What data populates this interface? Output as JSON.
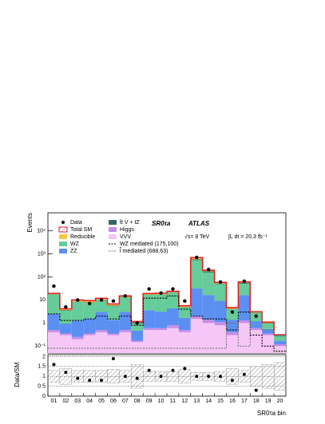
{
  "chart_data": {
    "type": "stacked-histogram",
    "ylabel": "Events",
    "xlabel": "SR0τa bin",
    "region_label": "SR0τa",
    "experiment": "ATLAS",
    "energy": "√s= 8 TeV",
    "luminosity": "∫L dt = 20.3 fb⁻¹",
    "log_scale": true,
    "categories": [
      "01",
      "02",
      "03",
      "04",
      "05",
      "06",
      "07",
      "08",
      "09",
      "10",
      "11",
      "12",
      "13",
      "14",
      "15",
      "16",
      "17",
      "18",
      "19",
      "20"
    ],
    "ylim": [
      0.05,
      60000
    ],
    "yticks": [
      {
        "value": 0.1,
        "label": "10⁻¹"
      },
      1,
      10,
      {
        "value": 100,
        "label": "10²"
      },
      {
        "value": 1000,
        "label": "10³"
      },
      {
        "value": 10000,
        "label": "10⁴"
      }
    ],
    "series": [
      {
        "name": "VVV",
        "color": "#f6c6f6",
        "values": [
          0.4,
          0.3,
          0.2,
          0.3,
          0.4,
          0.3,
          0.4,
          0.15,
          0.5,
          0.5,
          0.6,
          0.4,
          1.5,
          1,
          0.8,
          0.3,
          1,
          0.5,
          0.3,
          0.1
        ]
      },
      {
        "name": "Higgs",
        "color": "#c58de8",
        "values": [
          0.1,
          0.05,
          0.05,
          0.05,
          0.1,
          0.05,
          0.1,
          0.02,
          0.1,
          0.1,
          0.2,
          0.1,
          0.5,
          0.4,
          0.3,
          0.1,
          0.3,
          0.1,
          0.05,
          0.02
        ]
      },
      {
        "name": "ZZ",
        "color": "#5b8ff2",
        "values": [
          2,
          0.6,
          1,
          1.2,
          2.5,
          1,
          2.5,
          0.3,
          3,
          2.5,
          3.5,
          1.2,
          30,
          15,
          8,
          1,
          15,
          0.6,
          0.2,
          0.05
        ]
      },
      {
        "name": "WZ",
        "color": "#66cc99",
        "values": [
          15,
          2.5,
          7,
          6,
          7,
          4,
          10,
          0.5,
          13,
          14,
          17,
          3,
          500,
          140,
          40,
          2.5,
          35,
          1.5,
          0.4,
          0.1
        ]
      },
      {
        "name": "t̄t V + tZ",
        "color": "#336666",
        "values": [
          0.3,
          0.2,
          0.3,
          0.3,
          0.4,
          0.4,
          0.5,
          0.1,
          0.5,
          0.5,
          0.5,
          0.2,
          50,
          20,
          3,
          0.2,
          5,
          0.1,
          0.05,
          0.02
        ]
      },
      {
        "name": "Reducible",
        "color": "#f5c542",
        "values": [
          1.5,
          0.5,
          1.5,
          1.5,
          1.5,
          1,
          1.5,
          0.1,
          2,
          2,
          2,
          0.7,
          100,
          20,
          6,
          0.6,
          5,
          0.3,
          0.1,
          0.02
        ]
      }
    ],
    "total_name": "Total SM",
    "total_color": "#e41a1c",
    "data": {
      "name": "Data",
      "values": [
        40,
        5,
        10,
        7,
        10,
        9,
        15,
        1,
        30,
        20,
        30,
        9,
        700,
        210,
        60,
        3,
        65,
        2,
        null,
        null
      ]
    },
    "signals": [
      {
        "name": "WZ mediated (175,100)",
        "color": "#000000",
        "values": [
          2.5,
          1.3,
          1.3,
          1.5,
          2,
          1.5,
          2,
          0.8,
          12,
          12,
          15,
          4,
          2,
          1.5,
          1.5,
          0.5,
          3,
          0.3,
          0.1,
          0.06
        ]
      },
      {
        "name": "l̃ mediated (688,63)",
        "color": "#777777",
        "values": [
          0.08,
          0.08,
          0.08,
          0.08,
          0.08,
          0.08,
          0.08,
          0.08,
          0.08,
          0.08,
          0.08,
          0.08,
          0.08,
          0.08,
          0.08,
          1,
          0.1,
          3,
          0.5,
          0.3
        ]
      }
    ],
    "ratio": {
      "ylabel": "Data/SM",
      "ylim": [
        0,
        2.1
      ],
      "yticks": [
        0,
        0.5,
        1,
        1.5,
        2
      ],
      "values": [
        1.6,
        1.2,
        0.9,
        0.8,
        0.8,
        1.9,
        1.0,
        0.9,
        1.3,
        1.0,
        1.3,
        1.4,
        1.0,
        1.0,
        1.0,
        0.8,
        1.1,
        0.3,
        null,
        null
      ],
      "band": [
        0.3,
        0.4,
        0.3,
        0.3,
        0.3,
        0.35,
        0.3,
        0.6,
        0.25,
        0.25,
        0.25,
        0.35,
        0.2,
        0.2,
        0.25,
        0.4,
        0.3,
        0.5,
        0.6,
        0.7
      ]
    }
  }
}
